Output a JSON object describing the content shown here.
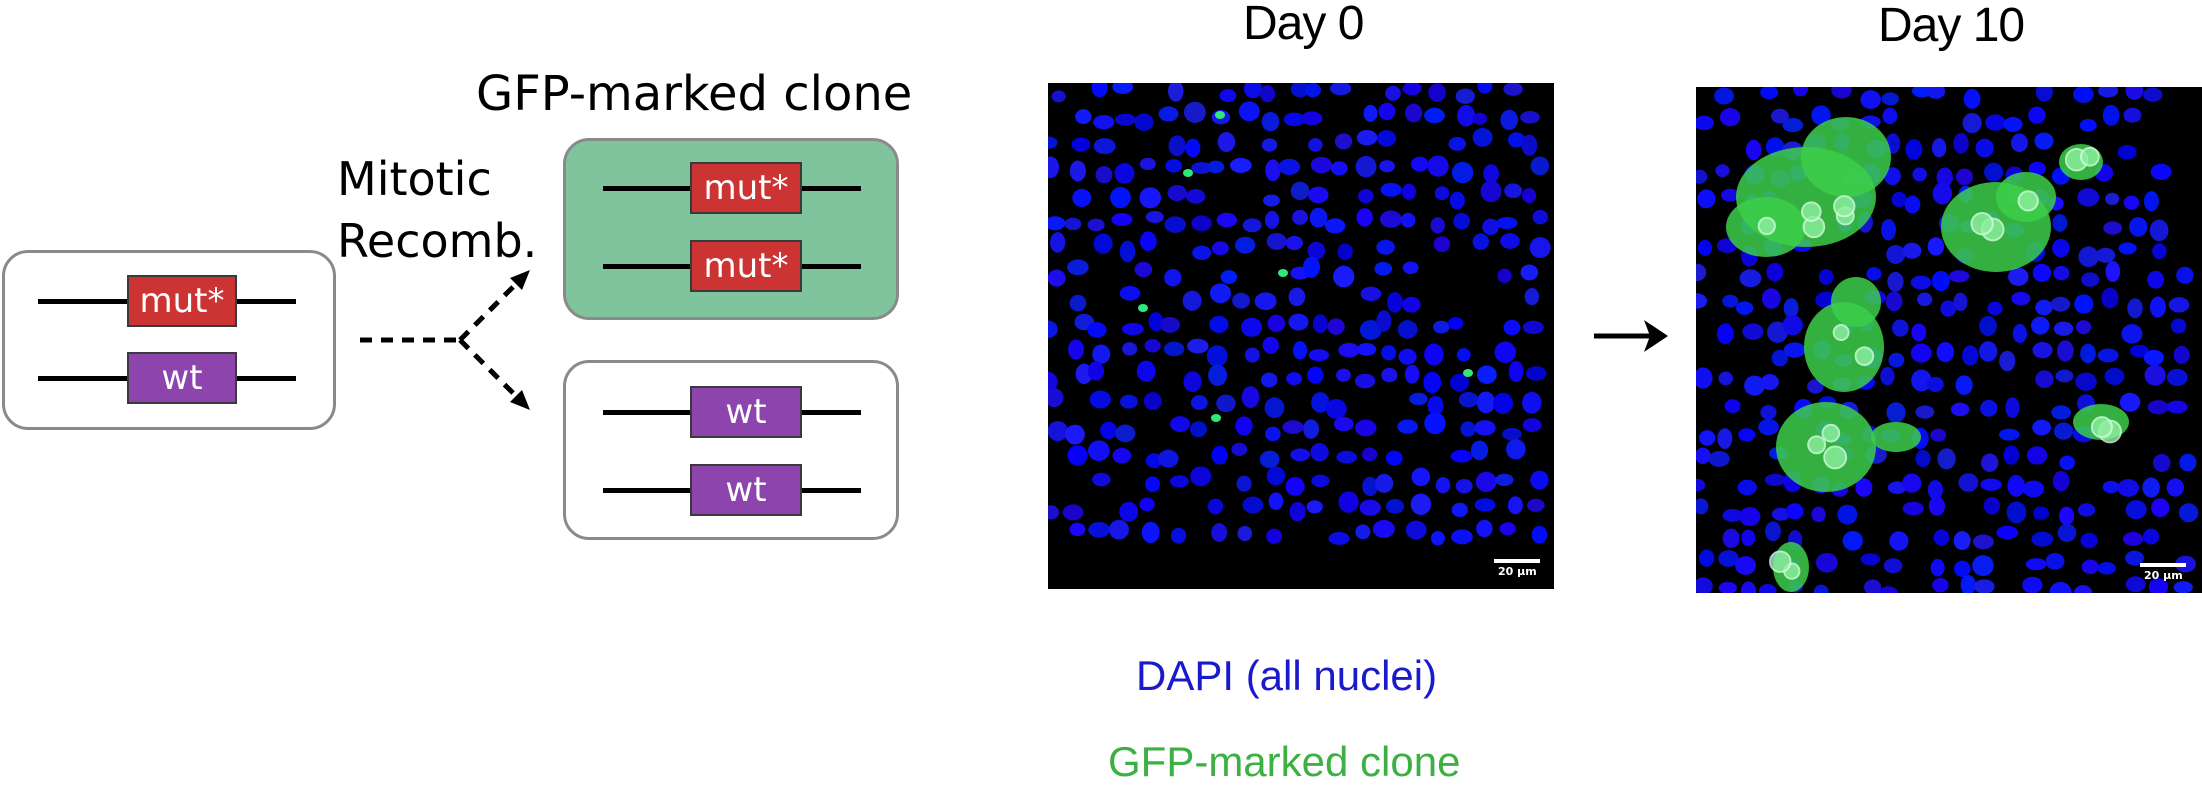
{
  "colors": {
    "mutant": "#cc3333",
    "wildtype": "#8e44ad",
    "clone_fill": "#7fc49c",
    "dapi": "#1a1aff",
    "gfp": "#2ecc40",
    "legend_dapi": "#1a1acc",
    "legend_gfp": "#3cb043"
  },
  "schematic": {
    "parent_alleles": [
      "mut*",
      "wt"
    ],
    "process_label_line1": "Mitotic",
    "process_label_line2": "Recomb.",
    "clone_title": "GFP-marked clone",
    "clone_alleles": [
      "mut*",
      "mut*"
    ],
    "sister_alleles": [
      "wt",
      "wt"
    ]
  },
  "panels": {
    "day0_title": "Day 0",
    "day10_title": "Day 10",
    "scale_label": "20 µm"
  },
  "legend": {
    "dapi": "DAPI (all nuclei)",
    "gfp": "GFP-marked clone"
  }
}
